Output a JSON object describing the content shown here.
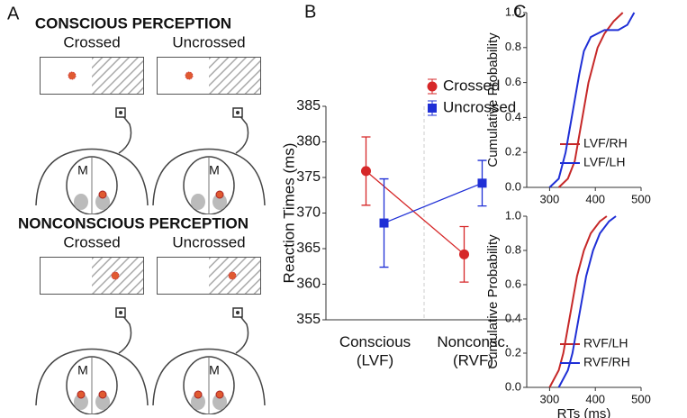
{
  "panel_a": {
    "label": "A",
    "sections": [
      {
        "title": "CONSCIOUS PERCEPTION",
        "conditions": [
          "Crossed",
          "Uncrossed"
        ]
      },
      {
        "title": "NONCONSCIOUS PERCEPTION",
        "conditions": [
          "Crossed",
          "Uncrossed"
        ]
      }
    ],
    "motor_label": "M"
  },
  "chart_data": [
    {
      "type": "line",
      "panel_label": "B",
      "ylabel": "Reaction Times (ms)",
      "categories": [
        "Conscious\n(LVF)",
        "Nonconsc.\n(RVF)"
      ],
      "ylim": [
        355,
        385
      ],
      "yticks": [
        355,
        360,
        365,
        370,
        375,
        380,
        385
      ],
      "series": [
        {
          "name": "Crossed",
          "color": "#d62728",
          "marker": "circle",
          "values": [
            375.9,
            364.2
          ],
          "errors": [
            4.8,
            3.9
          ]
        },
        {
          "name": "Uncrossed",
          "color": "#1f2fd6",
          "marker": "square",
          "values": [
            368.6,
            374.2
          ],
          "errors": [
            6.2,
            3.2
          ]
        }
      ]
    },
    {
      "type": "line",
      "panel_label": "C",
      "ylabel": "Cumulative Probability",
      "xlim": [
        250,
        500
      ],
      "xticks": [
        300,
        400,
        500
      ],
      "ylim": [
        0,
        1
      ],
      "yticks": [
        {
          "value": 0,
          "label": "0.0"
        },
        0.2,
        0.4,
        0.6,
        0.8,
        {
          "value": 1,
          "label": "1.0"
        }
      ],
      "series": [
        {
          "name": "LVF/RH",
          "color": "#c62828",
          "x": [
            320,
            340,
            355,
            365,
            375,
            385,
            395,
            405,
            420,
            440,
            460
          ],
          "values": [
            0,
            0.05,
            0.15,
            0.3,
            0.45,
            0.6,
            0.7,
            0.8,
            0.88,
            0.95,
            1.0
          ]
        },
        {
          "name": "LVF/LH",
          "color": "#1f2fd6",
          "x": [
            300,
            320,
            335,
            345,
            355,
            365,
            375,
            390,
            420,
            450,
            470,
            485
          ],
          "values": [
            0,
            0.05,
            0.2,
            0.35,
            0.5,
            0.65,
            0.78,
            0.86,
            0.9,
            0.9,
            0.93,
            1.0
          ]
        }
      ]
    },
    {
      "type": "line",
      "ylabel": "Cumulative Probability",
      "xlabel": "RTs (ms)",
      "xlim": [
        250,
        500
      ],
      "xticks": [
        300,
        400,
        500
      ],
      "ylim": [
        0,
        1
      ],
      "yticks": [
        {
          "value": 0,
          "label": "0.0"
        },
        0.2,
        0.4,
        0.6,
        0.8,
        {
          "value": 1,
          "label": "1.0"
        }
      ],
      "series": [
        {
          "name": "RVF/LH",
          "color": "#c62828",
          "x": [
            300,
            320,
            330,
            340,
            350,
            360,
            375,
            390,
            410,
            425
          ],
          "values": [
            0,
            0.1,
            0.2,
            0.35,
            0.5,
            0.65,
            0.8,
            0.9,
            0.97,
            1.0
          ]
        },
        {
          "name": "RVF/RH",
          "color": "#1f2fd6",
          "x": [
            320,
            340,
            350,
            360,
            370,
            380,
            395,
            410,
            430,
            445
          ],
          "values": [
            0,
            0.1,
            0.2,
            0.35,
            0.5,
            0.65,
            0.8,
            0.9,
            0.97,
            1.0
          ]
        }
      ]
    }
  ]
}
